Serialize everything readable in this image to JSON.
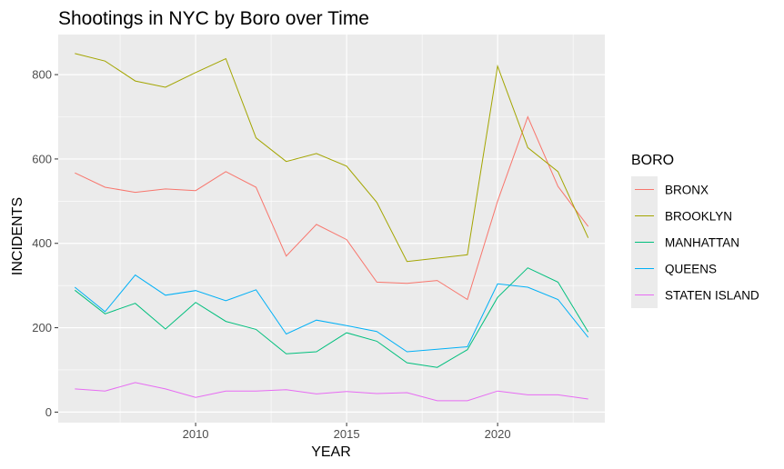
{
  "chart_data": {
    "type": "line",
    "title": "Shootings in NYC by Boro over Time",
    "xlabel": "YEAR",
    "ylabel": "INCIDENTS",
    "xlim": [
      2005.45,
      2023.55
    ],
    "ylim": [
      -25,
      895
    ],
    "x_ticks": [
      2010,
      2015,
      2020
    ],
    "y_ticks": [
      0,
      200,
      400,
      600,
      800
    ],
    "grid": true,
    "legend": {
      "title": "BORO",
      "placement": "right"
    },
    "x": [
      2006,
      2007,
      2008,
      2009,
      2010,
      2011,
      2012,
      2013,
      2014,
      2015,
      2016,
      2017,
      2018,
      2019,
      2020,
      2021,
      2022,
      2023
    ],
    "series": [
      {
        "name": "BRONX",
        "color": "#F8766D",
        "values": [
          567,
          533,
          521,
          529,
          525,
          570,
          533,
          370,
          445,
          409,
          308,
          305,
          312,
          267,
          500,
          700,
          535,
          440
        ]
      },
      {
        "name": "BROOKLYN",
        "color": "#A3A500",
        "values": [
          850,
          832,
          785,
          770,
          805,
          838,
          650,
          594,
          613,
          583,
          497,
          357,
          365,
          373,
          820,
          627,
          570,
          413
        ]
      },
      {
        "name": "MANHATTAN",
        "color": "#00BF7D",
        "values": [
          289,
          233,
          258,
          197,
          260,
          215,
          196,
          138,
          143,
          188,
          168,
          117,
          106,
          148,
          272,
          342,
          308,
          190
        ]
      },
      {
        "name": "QUEENS",
        "color": "#00B0F6",
        "values": [
          296,
          238,
          325,
          277,
          288,
          264,
          290,
          185,
          218,
          205,
          191,
          143,
          149,
          155,
          304,
          296,
          267,
          177
        ]
      },
      {
        "name": "STATEN ISLAND",
        "color": "#E76BF3",
        "values": [
          55,
          50,
          70,
          55,
          35,
          50,
          50,
          53,
          43,
          49,
          44,
          46,
          27,
          27,
          50,
          41,
          41,
          31
        ]
      }
    ]
  }
}
